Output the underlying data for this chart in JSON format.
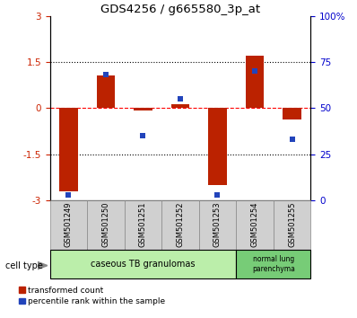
{
  "title": "GDS4256 / g665580_3p_at",
  "samples": [
    "GSM501249",
    "GSM501250",
    "GSM501251",
    "GSM501252",
    "GSM501253",
    "GSM501254",
    "GSM501255"
  ],
  "red_values": [
    -2.7,
    1.05,
    -0.08,
    0.12,
    -2.5,
    1.7,
    -0.38
  ],
  "blue_values": [
    3,
    68,
    35,
    55,
    3,
    70,
    33
  ],
  "ylim_left": [
    -3,
    3
  ],
  "ylim_right": [
    0,
    100
  ],
  "yticks_left": [
    -3,
    -1.5,
    0,
    1.5,
    3
  ],
  "yticks_right": [
    0,
    25,
    50,
    75,
    100
  ],
  "ytick_labels_left": [
    "-3",
    "-1.5",
    "0",
    "1.5",
    "3"
  ],
  "ytick_labels_right": [
    "0",
    "25",
    "50",
    "75",
    "100%"
  ],
  "hlines": [
    -1.5,
    0,
    1.5
  ],
  "hline_styles": [
    "dotted",
    "dashed",
    "dotted"
  ],
  "hline_colors": [
    "black",
    "red",
    "black"
  ],
  "bar_color": "#bb2200",
  "dot_color": "#2244bb",
  "bar_width": 0.5,
  "group1_label": "caseous TB granulomas",
  "group1_n": 5,
  "group2_label": "normal lung\nparenchyma",
  "group2_n": 2,
  "group1_color": "#bbeeaa",
  "group2_color": "#77cc77",
  "legend_red": "transformed count",
  "legend_blue": "percentile rank within the sample",
  "tick_label_color_left": "#cc2200",
  "tick_label_color_right": "#0000cc",
  "sample_box_color": "#d0d0d0"
}
